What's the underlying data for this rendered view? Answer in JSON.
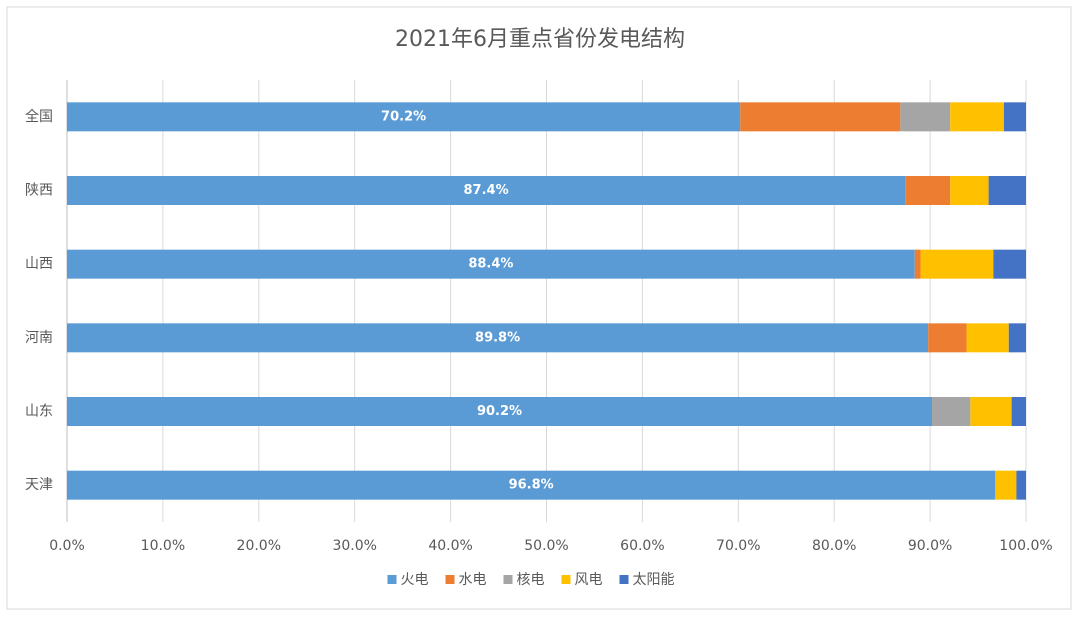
{
  "chart_data": {
    "type": "stacked-bar-horizontal",
    "title": "2021年6月重点省份发电结构",
    "categories": [
      "全国",
      "陕西",
      "山西",
      "河南",
      "山东",
      "天津"
    ],
    "series": [
      {
        "name": "火电",
        "color": "#5b9bd5",
        "values": [
          70.2,
          87.4,
          88.4,
          89.8,
          90.2,
          96.8
        ],
        "value_labels": [
          "70.2%",
          "87.4%",
          "88.4%",
          "89.8%",
          "90.2%",
          "96.8%"
        ]
      },
      {
        "name": "水电",
        "color": "#ed7d31",
        "values": [
          16.7,
          4.7,
          0.6,
          4.0,
          0,
          0
        ]
      },
      {
        "name": "核电",
        "color": "#a5a5a5",
        "values": [
          5.2,
          0,
          0,
          0,
          4.0,
          0
        ]
      },
      {
        "name": "风电",
        "color": "#ffc000",
        "values": [
          5.6,
          4.0,
          7.6,
          4.4,
          4.3,
          2.2
        ]
      },
      {
        "name": "太阳能",
        "color": "#4472c4",
        "values": [
          2.3,
          3.9,
          3.4,
          1.8,
          1.5,
          1.0
        ]
      }
    ],
    "xlim": [
      0,
      100
    ],
    "xticks": [
      {
        "value": 0,
        "label": "0.0%"
      },
      {
        "value": 10,
        "label": "10.0%"
      },
      {
        "value": 20,
        "label": "20.0%"
      },
      {
        "value": 30,
        "label": "30.0%"
      },
      {
        "value": 40,
        "label": "40.0%"
      },
      {
        "value": 50,
        "label": "50.0%"
      },
      {
        "value": 60,
        "label": "60.0%"
      },
      {
        "value": 70,
        "label": "70.0%"
      },
      {
        "value": 80,
        "label": "80.0%"
      },
      {
        "value": 90,
        "label": "90.0%"
      },
      {
        "value": 100,
        "label": "100.0%"
      }
    ],
    "grid": true,
    "legend": "bottom"
  }
}
